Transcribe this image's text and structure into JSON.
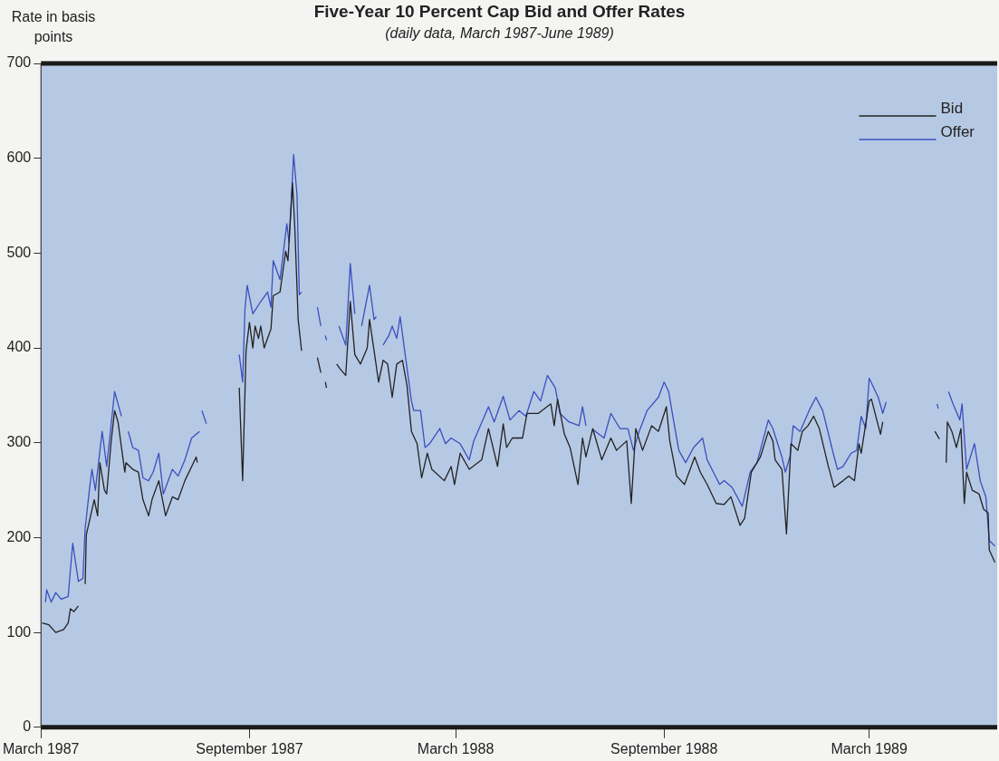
{
  "chart_data": {
    "type": "line",
    "title": "Five-Year 10 Percent Cap Bid and Offer Rates",
    "subtitle": "(daily data, March 1987-June 1989)",
    "ylabel": "Rate in basis points",
    "xlim": [
      "1987-03-01",
      "1989-06-22"
    ],
    "ylim": [
      0,
      700
    ],
    "yticks": [
      0,
      100,
      200,
      300,
      400,
      500,
      600,
      700
    ],
    "xticks": [
      {
        "value": "1987-03-01",
        "label": "March 1987"
      },
      {
        "value": "1987-09-01",
        "label": "September 1987"
      },
      {
        "value": "1988-03-01",
        "label": "March 1988"
      },
      {
        "value": "1988-09-01",
        "label": "September 1988"
      },
      {
        "value": "1989-03-01",
        "label": "March 1989"
      }
    ],
    "grid": false,
    "legend": "top right",
    "series": [
      {
        "name": "Bid",
        "color": "#222222",
        "x": [
          "1987-03-02",
          "1987-03-08",
          "1987-03-14",
          "1987-03-21",
          "1987-03-25",
          "1987-03-27",
          "1987-03-30",
          "1987-04-03",
          "1987-04-06",
          "1987-04-09",
          "1987-04-10",
          "1987-04-17",
          "1987-04-20",
          "1987-04-22",
          "1987-04-26",
          "1987-04-28",
          "1987-05-02",
          "1987-05-05",
          "1987-05-08",
          "1987-05-14",
          "1987-05-15",
          "1987-05-21",
          "1987-05-26",
          "1987-05-30",
          "1987-06-04",
          "1987-06-07",
          "1987-06-13",
          "1987-06-19",
          "1987-06-25",
          "1987-06-30",
          "1987-07-06",
          "1987-07-12",
          "1987-07-16",
          "1987-07-17",
          "1987-08-01",
          "1987-08-23",
          "1987-08-26",
          "1987-08-29",
          "1987-09-01",
          "1987-09-04",
          "1987-09-06",
          "1987-09-09",
          "1987-09-11",
          "1987-09-14",
          "1987-09-20",
          "1987-09-22",
          "1987-09-28",
          "1987-10-03",
          "1987-10-05",
          "1987-10-09",
          "1987-10-11",
          "1987-10-14",
          "1987-10-17",
          "1987-10-24",
          "1987-10-31",
          "1987-11-03",
          "1987-11-05",
          "1987-11-07",
          "1987-11-08",
          "1987-11-12",
          "1987-11-17",
          "1987-11-20",
          "1987-11-25",
          "1987-11-29",
          "1987-12-03",
          "1987-12-08",
          "1987-12-14",
          "1987-12-16",
          "1987-12-20",
          "1987-12-24",
          "1987-12-28",
          "1988-01-01",
          "1988-01-05",
          "1988-01-09",
          "1988-01-14",
          "1988-01-18",
          "1988-01-22",
          "1988-01-27",
          "1988-01-31",
          "1988-02-05",
          "1988-02-09",
          "1988-02-20",
          "1988-02-26",
          "1988-02-29",
          "1988-03-05",
          "1988-03-13",
          "1988-03-24",
          "1988-03-30",
          "1988-04-07",
          "1988-04-12",
          "1988-04-15",
          "1988-04-20",
          "1988-04-29",
          "1988-05-03",
          "1988-05-13",
          "1988-05-24",
          "1988-05-27",
          "1988-05-30",
          "1988-06-05",
          "1988-06-10",
          "1988-06-17",
          "1988-06-21",
          "1988-06-24",
          "1988-06-30",
          "1988-07-08",
          "1988-07-16",
          "1988-07-21",
          "1988-07-30",
          "1988-08-03",
          "1988-08-07",
          "1988-08-13",
          "1988-08-21",
          "1988-08-27",
          "1988-09-03",
          "1988-09-06",
          "1988-09-12",
          "1988-09-19",
          "1988-09-28",
          "1988-10-03",
          "1988-10-09",
          "1988-10-17",
          "1988-10-24",
          "1988-10-30",
          "1988-11-07",
          "1988-11-11",
          "1988-11-17",
          "1988-11-25",
          "1988-12-02",
          "1988-12-06",
          "1988-12-08",
          "1988-12-14",
          "1988-12-18",
          "1988-12-22",
          "1988-12-28",
          "1989-01-01",
          "1989-01-06",
          "1989-01-11",
          "1989-01-16",
          "1989-01-24",
          "1989-01-29",
          "1989-02-06",
          "1989-02-11",
          "1989-02-16",
          "1989-02-20",
          "1989-02-22",
          "1989-03-01",
          "1989-03-03",
          "1989-03-11",
          "1989-03-13",
          "1989-04-10",
          "1989-04-28",
          "1989-05-02",
          "1989-05-05",
          "1989-05-08",
          "1989-05-09",
          "1989-05-13",
          "1989-05-17",
          "1989-05-21",
          "1989-05-24",
          "1989-05-26",
          "1989-05-31",
          "1989-06-06",
          "1989-06-10",
          "1989-06-14",
          "1989-06-15",
          "1989-06-20"
        ],
        "values": [
          110,
          108,
          100,
          103,
          110,
          125,
          122,
          128,
          null,
          151,
          203,
          240,
          223,
          279,
          250,
          246,
          302,
          334,
          322,
          269,
          279,
          272,
          269,
          240,
          223,
          240,
          260,
          223,
          243,
          240,
          260,
          275,
          285,
          279,
          null,
          358,
          260,
          397,
          427,
          400,
          423,
          410,
          423,
          400,
          420,
          455,
          459,
          502,
          492,
          574,
          528,
          430,
          397,
          null,
          390,
          374,
          null,
          364,
          358,
          null,
          383,
          378,
          371,
          449,
          393,
          383,
          400,
          430,
          397,
          364,
          387,
          383,
          348,
          383,
          387,
          361,
          312,
          299,
          263,
          289,
          272,
          260,
          275,
          256,
          289,
          272,
          282,
          315,
          275,
          320,
          295,
          305,
          305,
          331,
          331,
          341,
          318,
          346,
          309,
          295,
          256,
          305,
          285,
          315,
          282,
          305,
          292,
          302,
          236,
          315,
          292,
          318,
          312,
          338,
          302,
          265,
          256,
          285,
          269,
          256,
          236,
          235,
          243,
          213,
          220,
          269,
          285,
          312,
          302,
          282,
          272,
          204,
          299,
          292,
          312,
          318,
          328,
          315,
          275,
          253,
          260,
          265,
          260,
          299,
          289,
          344,
          346,
          309,
          322,
          null,
          312,
          304,
          null,
          279,
          322,
          312,
          295,
          315,
          236,
          269,
          250,
          246,
          230,
          226,
          187,
          174
        ]
      },
      {
        "name": "Offer",
        "color": "#3a4fc0",
        "x": [
          "1987-03-05",
          "1987-03-06",
          "1987-03-10",
          "1987-03-14",
          "1987-03-19",
          "1987-03-25",
          "1987-03-29",
          "1987-04-03",
          "1987-04-07",
          "1987-04-09",
          "1987-04-13",
          "1987-04-15",
          "1987-04-18",
          "1987-04-24",
          "1987-04-28",
          "1987-05-05",
          "1987-05-11",
          "1987-05-14",
          "1987-05-17",
          "1987-05-21",
          "1987-05-26",
          "1987-05-30",
          "1987-06-04",
          "1987-06-08",
          "1987-06-13",
          "1987-06-17",
          "1987-06-25",
          "1987-06-30",
          "1987-07-06",
          "1987-07-12",
          "1987-07-16",
          "1987-07-19",
          "1987-07-20",
          "1987-07-21",
          "1987-07-25",
          "1987-08-10",
          "1987-08-23",
          "1987-08-26",
          "1987-08-28",
          "1987-08-30",
          "1987-09-04",
          "1987-09-11",
          "1987-09-17",
          "1987-09-20",
          "1987-09-22",
          "1987-09-28",
          "1987-10-04",
          "1987-10-06",
          "1987-10-10",
          "1987-10-13",
          "1987-10-15",
          "1987-10-17",
          "1987-10-24",
          "1987-10-31",
          "1987-11-03",
          "1987-11-05",
          "1987-11-07",
          "1987-11-08",
          "1987-11-12",
          "1987-11-19",
          "1987-11-25",
          "1987-11-29",
          "1987-12-03",
          "1987-12-06",
          "1987-12-09",
          "1987-12-16",
          "1987-12-20",
          "1987-12-22",
          "1987-12-25",
          "1987-12-28",
          "1988-01-02",
          "1988-01-05",
          "1988-01-09",
          "1988-01-12",
          "1988-01-16",
          "1988-01-22",
          "1988-01-24",
          "1988-01-30",
          "1988-02-03",
          "1988-02-07",
          "1988-02-16",
          "1988-02-21",
          "1988-02-26",
          "1988-03-05",
          "1988-03-13",
          "1988-03-17",
          "1988-03-30",
          "1988-04-04",
          "1988-04-12",
          "1988-04-18",
          "1988-04-26",
          "1988-05-02",
          "1988-05-09",
          "1988-05-15",
          "1988-05-21",
          "1988-05-28",
          "1988-06-01",
          "1988-06-09",
          "1988-06-18",
          "1988-06-21",
          "1988-06-24",
          "1988-06-27",
          "1988-06-30",
          "1988-07-10",
          "1988-07-16",
          "1988-07-24",
          "1988-07-31",
          "1988-08-05",
          "1988-08-10",
          "1988-08-17",
          "1988-08-27",
          "1988-09-01",
          "1988-09-05",
          "1988-09-09",
          "1988-09-14",
          "1988-09-20",
          "1988-09-27",
          "1988-10-05",
          "1988-10-09",
          "1988-10-20",
          "1988-10-24",
          "1988-10-31",
          "1988-11-09",
          "1988-11-16",
          "1988-11-22",
          "1988-12-02",
          "1988-12-06",
          "1988-12-14",
          "1988-12-17",
          "1988-12-21",
          "1988-12-24",
          "1988-12-30",
          "1989-01-07",
          "1989-01-13",
          "1989-01-19",
          "1989-01-27",
          "1989-02-01",
          "1989-02-06",
          "1989-02-13",
          "1989-02-18",
          "1989-02-22",
          "1989-02-26",
          "1989-03-01",
          "1989-03-05",
          "1989-03-09",
          "1989-03-13",
          "1989-03-16",
          "1989-04-10",
          "1989-04-30",
          "1989-05-01",
          "1989-05-05",
          "1989-05-10",
          "1989-05-14",
          "1989-05-20",
          "1989-05-22",
          "1989-05-26",
          "1989-06-02",
          "1989-06-07",
          "1989-06-12",
          "1989-06-15",
          "1989-06-20"
        ],
        "values": [
          132,
          145,
          132,
          142,
          135,
          138,
          194,
          154,
          157,
          210,
          253,
          272,
          250,
          312,
          275,
          354,
          328,
          null,
          312,
          295,
          292,
          263,
          260,
          269,
          289,
          246,
          272,
          265,
          282,
          305,
          309,
          312,
          null,
          334,
          320,
          null,
          393,
          364,
          440,
          466,
          436,
          449,
          459,
          443,
          492,
          472,
          531,
          511,
          604,
          561,
          456,
          459,
          null,
          443,
          423,
          null,
          413,
          408,
          null,
          423,
          403,
          489,
          436,
          null,
          423,
          466,
          430,
          433,
          null,
          403,
          413,
          423,
          410,
          433,
          397,
          344,
          334,
          334,
          295,
          299,
          315,
          299,
          305,
          299,
          282,
          302,
          338,
          322,
          349,
          324,
          334,
          328,
          354,
          344,
          371,
          358,
          331,
          322,
          318,
          338,
          318,
          null,
          314,
          305,
          331,
          315,
          315,
          292,
          312,
          334,
          348,
          364,
          354,
          326,
          292,
          279,
          295,
          305,
          282,
          256,
          260,
          253,
          233,
          269,
          279,
          324,
          315,
          285,
          269,
          285,
          318,
          312,
          334,
          348,
          334,
          295,
          272,
          275,
          289,
          292,
          328,
          315,
          368,
          358,
          348,
          331,
          343,
          null,
          341,
          336,
          null,
          354,
          341,
          324,
          341,
          272,
          299,
          260,
          243,
          197,
          191
        ]
      }
    ]
  }
}
